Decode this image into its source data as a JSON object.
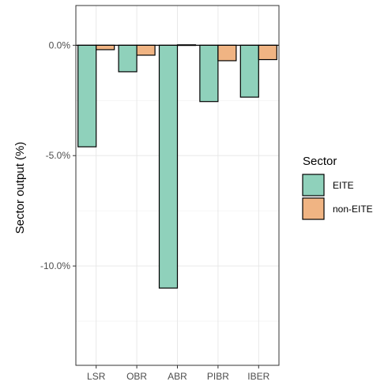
{
  "chart_data": {
    "type": "bar",
    "categories": [
      "LSR",
      "OBR",
      "ABR",
      "PIBR",
      "IBER"
    ],
    "series": [
      {
        "name": "EITE",
        "values": [
          -4.6,
          -1.2,
          -11.0,
          -2.55,
          -2.35
        ]
      },
      {
        "name": "non-EITE",
        "values": [
          -0.2,
          -0.45,
          0.02,
          -0.7,
          -0.65
        ]
      }
    ],
    "ylabel": "Sector output (%)",
    "xlabel": "",
    "ylim": [
      -14.5,
      1.8
    ],
    "yticks": [
      0,
      -5,
      -10
    ],
    "ytick_labels": [
      "0.0%",
      "-5.0%",
      "-10.0%"
    ],
    "legend_title": "Sector",
    "legend_position": "right",
    "grid": true,
    "colors": {
      "EITE": "#8fd1bb",
      "non-EITE": "#f0b483"
    }
  }
}
